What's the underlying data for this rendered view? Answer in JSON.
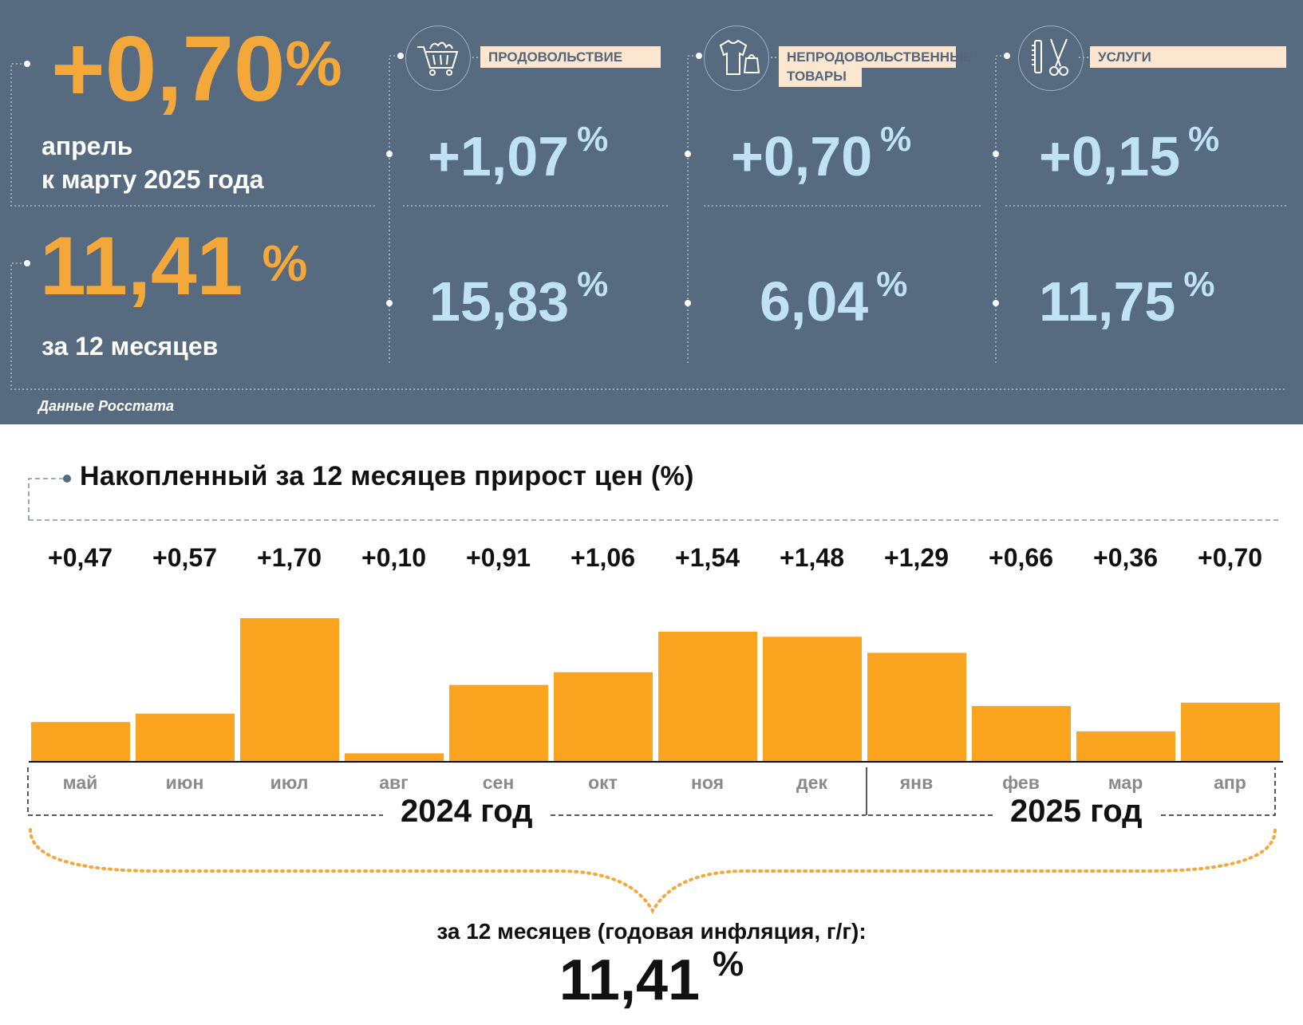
{
  "colors": {
    "panel": "#566a80",
    "accent": "#f5a83a",
    "light": "#bfe2f4",
    "label_bg": "#fbe7cf",
    "bar": "#fba41f"
  },
  "header": {
    "monthly_value": "+0,70",
    "monthly_pct": "%",
    "monthly_caption_1": "апрель",
    "monthly_caption_2": "к марту 2025 года",
    "annual_value": "11,41",
    "annual_pct": "%",
    "annual_caption": "за 12 месяцев",
    "source": "Данные Росстата"
  },
  "categories": [
    {
      "label": "ПРОДОВОЛЬСТВИЕ",
      "icon": "shopping-cart-icon",
      "monthly": "+1,07",
      "annual": "15,83",
      "pct": "%"
    },
    {
      "label": "НЕПРОДОВОЛЬСТВЕННЫЕ ТОВАРЫ",
      "label_line1": "НЕПРОДОВОЛЬСТВЕННЫЕ",
      "label_line2": "ТОВАРЫ",
      "icon": "clothing-bag-icon",
      "monthly": "+0,70",
      "annual": "6,04",
      "pct": "%"
    },
    {
      "label": "УСЛУГИ",
      "icon": "comb-scissors-icon",
      "monthly": "+0,15",
      "annual": "11,75",
      "pct": "%"
    }
  ],
  "chart_data": {
    "type": "bar",
    "title": "Накопленный за 12 месяцев прирост цен (%)",
    "categories": [
      "май",
      "июн",
      "июл",
      "авг",
      "сен",
      "окт",
      "ноя",
      "дек",
      "янв",
      "фев",
      "мар",
      "апр"
    ],
    "values": [
      0.47,
      0.57,
      1.7,
      0.1,
      0.91,
      1.06,
      1.54,
      1.48,
      1.29,
      0.66,
      0.36,
      0.7
    ],
    "value_labels": [
      "+0,47",
      "+0,57",
      "+1,70",
      "+0,10",
      "+0,91",
      "+1,06",
      "+1,54",
      "+1,48",
      "+1,29",
      "+0,66",
      "+0,36",
      "+0,70"
    ],
    "groups": [
      {
        "label": "2024 год"
      },
      {
        "label": "2025 год"
      }
    ],
    "summary_label": "за 12 месяцев (годовая инфляция, г/г):",
    "summary_value": "11,41",
    "summary_pct": "%"
  }
}
